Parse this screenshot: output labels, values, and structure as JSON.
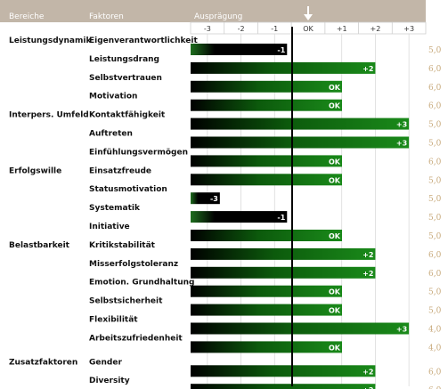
{
  "header": {
    "col_bereiche": "Bereiche",
    "col_faktoren": "Faktoren",
    "col_auspraegung": "Ausprägung"
  },
  "chart_data": {
    "type": "bar",
    "orientation": "horizontal",
    "x_ticks": [
      "-3",
      "-2",
      "-1",
      "OK",
      "+1",
      "+2",
      "+3"
    ],
    "xlim": [
      -3.5,
      3.5
    ],
    "reference_line": 0,
    "reference_marker": "down-arrow-icon",
    "colors": {
      "negative": "#000000",
      "positive": "#0a7a0a",
      "header": "#c2b6a8",
      "score": "#c8aa7c"
    },
    "groups": [
      {
        "name": "Leistungsdynamik",
        "rows": [
          {
            "factor": "Eigenverantwortlichkeit",
            "value": -1,
            "label": "-1",
            "score": "5,0"
          },
          {
            "factor": "Leistungsdrang",
            "value": 2,
            "label": "+2",
            "score": "6,0"
          },
          {
            "factor": "Selbstvertrauen",
            "value": 0,
            "label": "OK",
            "score": "6,0"
          },
          {
            "factor": "Motivation",
            "value": 0,
            "label": "OK",
            "score": "6,0"
          }
        ]
      },
      {
        "name": "Interpers. Umfeld",
        "rows": [
          {
            "factor": "Kontaktfähigkeit",
            "value": 3,
            "label": "+3",
            "score": "5,0"
          },
          {
            "factor": "Auftreten",
            "value": 3,
            "label": "+3",
            "score": "5,0"
          },
          {
            "factor": "Einfühlungsvermögen",
            "value": 0,
            "label": "OK",
            "score": "6,0"
          }
        ]
      },
      {
        "name": "Erfolgswille",
        "rows": [
          {
            "factor": "Einsatzfreude",
            "value": 0,
            "label": "OK",
            "score": "5,0"
          },
          {
            "factor": "Statusmotivation",
            "value": -3,
            "label": "-3",
            "score": "5,0"
          },
          {
            "factor": "Systematik",
            "value": -1,
            "label": "-1",
            "score": "5,0"
          },
          {
            "factor": "Initiative",
            "value": 0,
            "label": "OK",
            "score": "5,0"
          }
        ]
      },
      {
        "name": "Belastbarkeit",
        "rows": [
          {
            "factor": "Kritikstabilität",
            "value": 2,
            "label": "+2",
            "score": "6,0"
          },
          {
            "factor": "Misserfolgstoleranz",
            "value": 2,
            "label": "+2",
            "score": "6,0"
          },
          {
            "factor": "Emotion. Grundhaltung",
            "value": 0,
            "label": "OK",
            "score": "5,0"
          },
          {
            "factor": "Selbstsicherheit",
            "value": 0,
            "label": "OK",
            "score": "5,0"
          },
          {
            "factor": "Flexibilität",
            "value": 3,
            "label": "+3",
            "score": "4,0"
          },
          {
            "factor": "Arbeitszufriedenheit",
            "value": 0,
            "label": "OK",
            "score": "4,0"
          }
        ]
      },
      {
        "name": "Zusatzfaktoren",
        "rows": [
          {
            "factor": "Gender",
            "value": 2,
            "label": "+2",
            "score": "6,0"
          },
          {
            "factor": "Diversity",
            "value": 2,
            "label": "+2",
            "score": "6,0"
          }
        ]
      }
    ]
  }
}
